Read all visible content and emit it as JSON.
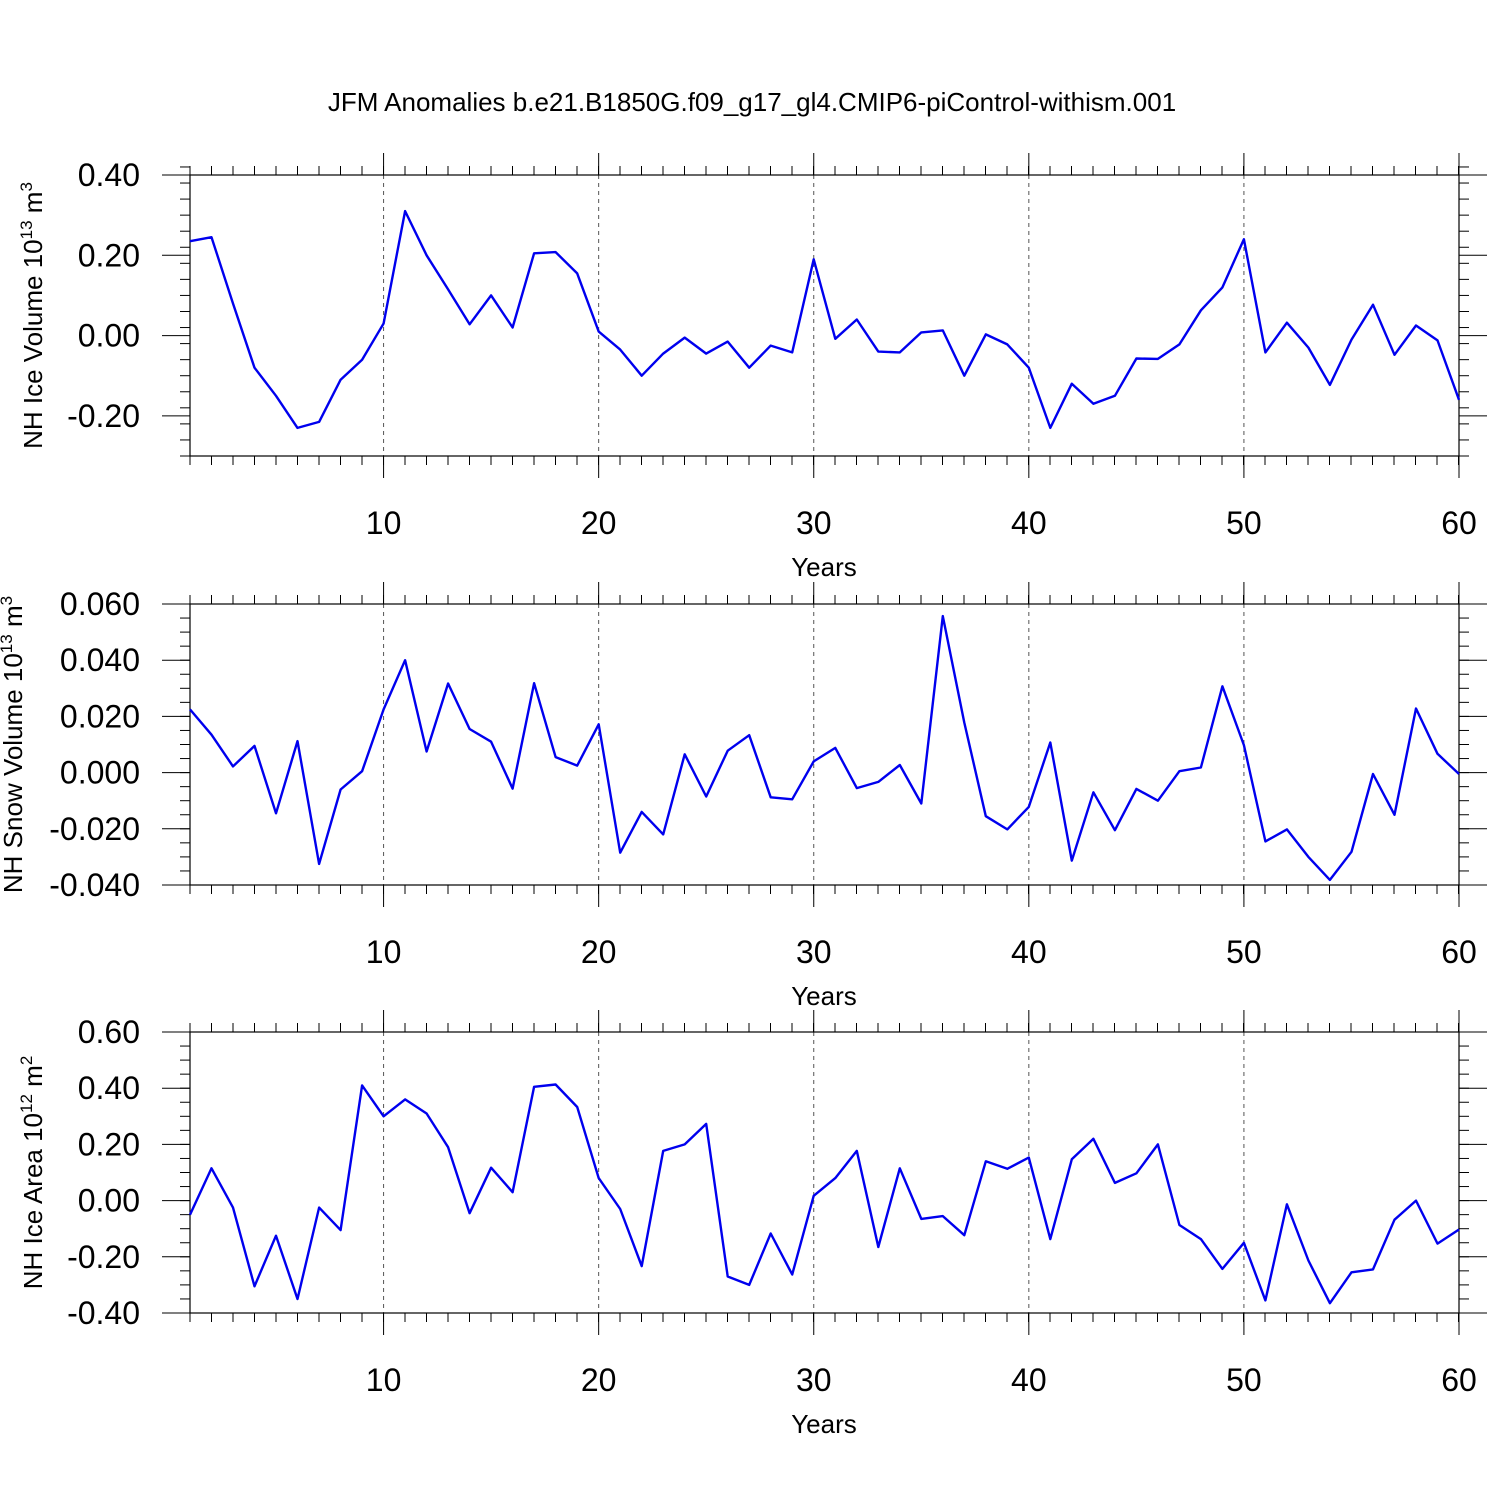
{
  "title": "JFM Anomalies b.e21.B1850G.f09_g17_gl4.CMIP6-piControl-withism.001",
  "colors": {
    "series": "#0000ee",
    "axis": "#000000",
    "grid": "#555555"
  },
  "chart_data": [
    {
      "type": "line",
      "title": "",
      "xlabel": "Years",
      "ylabel": {
        "base": "NH Ice Volume 10",
        "sup": "13",
        "unit": " m",
        "unit_sup": "3"
      },
      "xlim": [
        1,
        60
      ],
      "ylim": [
        -0.3,
        0.4
      ],
      "xticks": [
        10,
        20,
        30,
        40,
        50,
        60
      ],
      "xtick_labels": [
        "10",
        "20",
        "30",
        "40",
        "50",
        "60"
      ],
      "yticks": [
        -0.2,
        0.0,
        0.2,
        0.4
      ],
      "ytick_labels": [
        "-0.20",
        "0.00",
        "0.20",
        "0.40"
      ],
      "minor_y_step": 0.04,
      "grid": "vertical-dashed",
      "x": [
        1,
        2,
        3,
        4,
        5,
        6,
        7,
        8,
        9,
        10,
        11,
        12,
        13,
        14,
        15,
        16,
        17,
        18,
        19,
        20,
        21,
        22,
        23,
        24,
        25,
        26,
        27,
        28,
        29,
        30,
        31,
        32,
        33,
        34,
        35,
        36,
        37,
        38,
        39,
        40,
        41,
        42,
        43,
        44,
        45,
        46,
        47,
        48,
        49,
        50,
        51,
        52,
        53,
        54,
        55,
        56,
        57,
        58,
        59,
        60
      ],
      "series": [
        {
          "values": [
            0.235,
            0.245,
            0.08,
            -0.08,
            -0.15,
            -0.23,
            -0.215,
            -0.11,
            -0.06,
            0.03,
            0.31,
            0.2,
            0.115,
            0.028,
            0.1,
            0.02,
            0.205,
            0.208,
            0.155,
            0.01,
            -0.035,
            -0.1,
            -0.045,
            -0.005,
            -0.045,
            -0.015,
            -0.08,
            -0.025,
            -0.042,
            0.19,
            -0.008,
            0.04,
            -0.04,
            -0.042,
            0.008,
            0.013,
            -0.1,
            0.003,
            -0.022,
            -0.08,
            -0.23,
            -0.12,
            -0.17,
            -0.15,
            -0.057,
            -0.058,
            -0.022,
            0.063,
            0.12,
            0.24,
            -0.042,
            0.032,
            -0.03,
            -0.123,
            -0.01,
            0.077,
            -0.048,
            0.025,
            -0.012,
            -0.16
          ]
        }
      ]
    },
    {
      "type": "line",
      "title": "",
      "xlabel": "Years",
      "ylabel": {
        "base": "NH Snow Volume 10",
        "sup": "13",
        "unit": " m",
        "unit_sup": "3"
      },
      "xlim": [
        1,
        60
      ],
      "ylim": [
        -0.04,
        0.06
      ],
      "xticks": [
        10,
        20,
        30,
        40,
        50,
        60
      ],
      "xtick_labels": [
        "10",
        "20",
        "30",
        "40",
        "50",
        "60"
      ],
      "yticks": [
        -0.04,
        -0.02,
        0.0,
        0.02,
        0.04,
        0.06
      ],
      "ytick_labels": [
        "-0.040",
        "-0.020",
        "0.000",
        "0.020",
        "0.040",
        "0.060"
      ],
      "minor_y_step": 0.005,
      "grid": "vertical-dashed",
      "x": [
        1,
        2,
        3,
        4,
        5,
        6,
        7,
        8,
        9,
        10,
        11,
        12,
        13,
        14,
        15,
        16,
        17,
        18,
        19,
        20,
        21,
        22,
        23,
        24,
        25,
        26,
        27,
        28,
        29,
        30,
        31,
        32,
        33,
        34,
        35,
        36,
        37,
        38,
        39,
        40,
        41,
        42,
        43,
        44,
        45,
        46,
        47,
        48,
        49,
        50,
        51,
        52,
        53,
        54,
        55,
        56,
        57,
        58,
        59,
        60
      ],
      "series": [
        {
          "values": [
            0.0225,
            0.0135,
            0.0022,
            0.0095,
            -0.0145,
            0.0112,
            -0.0325,
            -0.006,
            0.0005,
            0.0225,
            0.04,
            0.0075,
            0.0317,
            0.0155,
            0.011,
            -0.0057,
            0.0318,
            0.0055,
            0.0025,
            0.0172,
            -0.0285,
            -0.014,
            -0.022,
            0.0065,
            -0.0085,
            0.0078,
            0.0133,
            -0.0088,
            -0.0095,
            0.004,
            0.0088,
            -0.0055,
            -0.0033,
            0.0027,
            -0.011,
            0.0557,
            0.0178,
            -0.0155,
            -0.0202,
            -0.0122,
            0.0107,
            -0.0313,
            -0.007,
            -0.0205,
            -0.0058,
            -0.01,
            0.0005,
            0.0018,
            0.0307,
            0.0098,
            -0.0245,
            -0.0202,
            -0.03,
            -0.0382,
            -0.0282,
            -0.0005,
            -0.015,
            0.0228,
            0.0067,
            -0.0005
          ]
        }
      ]
    },
    {
      "type": "line",
      "title": "",
      "xlabel": "Years",
      "ylabel": {
        "base": "NH Ice Area 10",
        "sup": "12",
        "unit": " m",
        "unit_sup": "2"
      },
      "xlim": [
        1,
        60
      ],
      "ylim": [
        -0.4,
        0.6
      ],
      "xticks": [
        10,
        20,
        30,
        40,
        50,
        60
      ],
      "xtick_labels": [
        "10",
        "20",
        "30",
        "40",
        "50",
        "60"
      ],
      "yticks": [
        -0.4,
        -0.2,
        0.0,
        0.2,
        0.4,
        0.6
      ],
      "ytick_labels": [
        "-0.40",
        "-0.20",
        "0.00",
        "0.20",
        "0.40",
        "0.60"
      ],
      "minor_y_step": 0.05,
      "grid": "vertical-dashed",
      "x": [
        1,
        2,
        3,
        4,
        5,
        6,
        7,
        8,
        9,
        10,
        11,
        12,
        13,
        14,
        15,
        16,
        17,
        18,
        19,
        20,
        21,
        22,
        23,
        24,
        25,
        26,
        27,
        28,
        29,
        30,
        31,
        32,
        33,
        34,
        35,
        36,
        37,
        38,
        39,
        40,
        41,
        42,
        43,
        44,
        45,
        46,
        47,
        48,
        49,
        50,
        51,
        52,
        53,
        54,
        55,
        56,
        57,
        58,
        59,
        60
      ],
      "series": [
        {
          "values": [
            -0.05,
            0.115,
            -0.025,
            -0.305,
            -0.125,
            -0.35,
            -0.025,
            -0.105,
            0.41,
            0.3,
            0.36,
            0.31,
            0.19,
            -0.045,
            0.117,
            0.03,
            0.405,
            0.413,
            0.333,
            0.08,
            -0.03,
            -0.233,
            0.177,
            0.2,
            0.273,
            -0.27,
            -0.3,
            -0.117,
            -0.263,
            0.017,
            0.08,
            0.177,
            -0.165,
            0.115,
            -0.065,
            -0.055,
            -0.123,
            0.14,
            0.113,
            0.153,
            -0.137,
            0.147,
            0.22,
            0.063,
            0.097,
            0.2,
            -0.087,
            -0.137,
            -0.243,
            -0.15,
            -0.355,
            -0.013,
            -0.213,
            -0.365,
            -0.255,
            -0.245,
            -0.068,
            0.0,
            -0.153,
            -0.103
          ]
        }
      ]
    }
  ]
}
